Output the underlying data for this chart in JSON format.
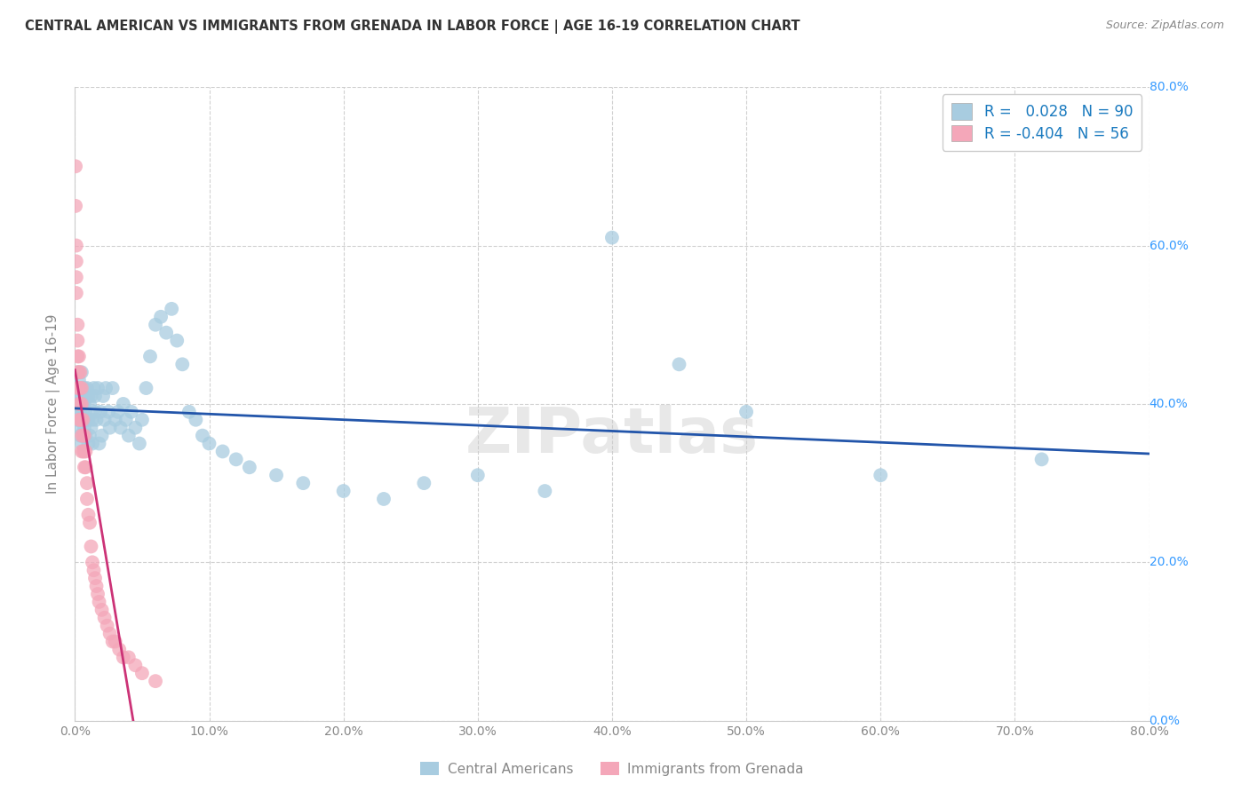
{
  "title": "CENTRAL AMERICAN VS IMMIGRANTS FROM GRENADA IN LABOR FORCE | AGE 16-19 CORRELATION CHART",
  "source": "Source: ZipAtlas.com",
  "ylabel_label": "In Labor Force | Age 16-19",
  "legend_label1": "Central Americans",
  "legend_label2": "Immigrants from Grenada",
  "R1": 0.028,
  "N1": 90,
  "R2": -0.404,
  "N2": 56,
  "blue_color": "#a8cce0",
  "pink_color": "#f4a7b9",
  "blue_line_color": "#2255aa",
  "pink_line_color": "#cc3377",
  "title_color": "#333333",
  "axis_color": "#888888",
  "grid_color": "#cccccc",
  "watermark": "ZIPatlas",
  "blue_scatter_x": [
    0.001,
    0.001,
    0.002,
    0.002,
    0.002,
    0.003,
    0.003,
    0.003,
    0.003,
    0.004,
    0.004,
    0.004,
    0.004,
    0.005,
    0.005,
    0.005,
    0.005,
    0.006,
    0.006,
    0.006,
    0.006,
    0.007,
    0.007,
    0.007,
    0.007,
    0.008,
    0.008,
    0.008,
    0.009,
    0.009,
    0.01,
    0.01,
    0.01,
    0.011,
    0.011,
    0.012,
    0.012,
    0.013,
    0.013,
    0.014,
    0.015,
    0.015,
    0.016,
    0.017,
    0.018,
    0.019,
    0.02,
    0.021,
    0.022,
    0.023,
    0.025,
    0.026,
    0.028,
    0.03,
    0.032,
    0.034,
    0.036,
    0.038,
    0.04,
    0.042,
    0.045,
    0.048,
    0.05,
    0.053,
    0.056,
    0.06,
    0.064,
    0.068,
    0.072,
    0.076,
    0.08,
    0.085,
    0.09,
    0.095,
    0.1,
    0.11,
    0.12,
    0.13,
    0.15,
    0.17,
    0.2,
    0.23,
    0.26,
    0.3,
    0.35,
    0.4,
    0.45,
    0.5,
    0.6,
    0.72
  ],
  "blue_scatter_y": [
    0.4,
    0.38,
    0.42,
    0.39,
    0.44,
    0.37,
    0.41,
    0.43,
    0.38,
    0.36,
    0.39,
    0.42,
    0.4,
    0.35,
    0.38,
    0.41,
    0.44,
    0.36,
    0.39,
    0.42,
    0.4,
    0.37,
    0.4,
    0.42,
    0.38,
    0.36,
    0.39,
    0.41,
    0.38,
    0.42,
    0.35,
    0.38,
    0.41,
    0.36,
    0.4,
    0.37,
    0.41,
    0.38,
    0.35,
    0.42,
    0.39,
    0.41,
    0.38,
    0.42,
    0.35,
    0.39,
    0.36,
    0.41,
    0.38,
    0.42,
    0.39,
    0.37,
    0.42,
    0.38,
    0.39,
    0.37,
    0.4,
    0.38,
    0.36,
    0.39,
    0.37,
    0.35,
    0.38,
    0.42,
    0.46,
    0.5,
    0.51,
    0.49,
    0.52,
    0.48,
    0.45,
    0.39,
    0.38,
    0.36,
    0.35,
    0.34,
    0.33,
    0.32,
    0.31,
    0.3,
    0.29,
    0.28,
    0.3,
    0.31,
    0.29,
    0.61,
    0.45,
    0.39,
    0.31,
    0.33
  ],
  "pink_scatter_x": [
    0.0005,
    0.0005,
    0.001,
    0.001,
    0.001,
    0.001,
    0.002,
    0.002,
    0.002,
    0.002,
    0.002,
    0.003,
    0.003,
    0.003,
    0.003,
    0.003,
    0.004,
    0.004,
    0.004,
    0.004,
    0.005,
    0.005,
    0.005,
    0.005,
    0.005,
    0.006,
    0.006,
    0.006,
    0.007,
    0.007,
    0.007,
    0.008,
    0.008,
    0.009,
    0.009,
    0.01,
    0.011,
    0.012,
    0.013,
    0.014,
    0.015,
    0.016,
    0.017,
    0.018,
    0.02,
    0.022,
    0.024,
    0.026,
    0.028,
    0.03,
    0.033,
    0.036,
    0.04,
    0.045,
    0.05,
    0.06
  ],
  "pink_scatter_y": [
    0.7,
    0.65,
    0.6,
    0.58,
    0.56,
    0.54,
    0.5,
    0.48,
    0.46,
    0.44,
    0.42,
    0.46,
    0.44,
    0.42,
    0.4,
    0.38,
    0.44,
    0.42,
    0.4,
    0.38,
    0.42,
    0.4,
    0.38,
    0.36,
    0.34,
    0.38,
    0.36,
    0.34,
    0.36,
    0.34,
    0.32,
    0.34,
    0.32,
    0.3,
    0.28,
    0.26,
    0.25,
    0.22,
    0.2,
    0.19,
    0.18,
    0.17,
    0.16,
    0.15,
    0.14,
    0.13,
    0.12,
    0.11,
    0.1,
    0.1,
    0.09,
    0.08,
    0.08,
    0.07,
    0.06,
    0.05
  ]
}
